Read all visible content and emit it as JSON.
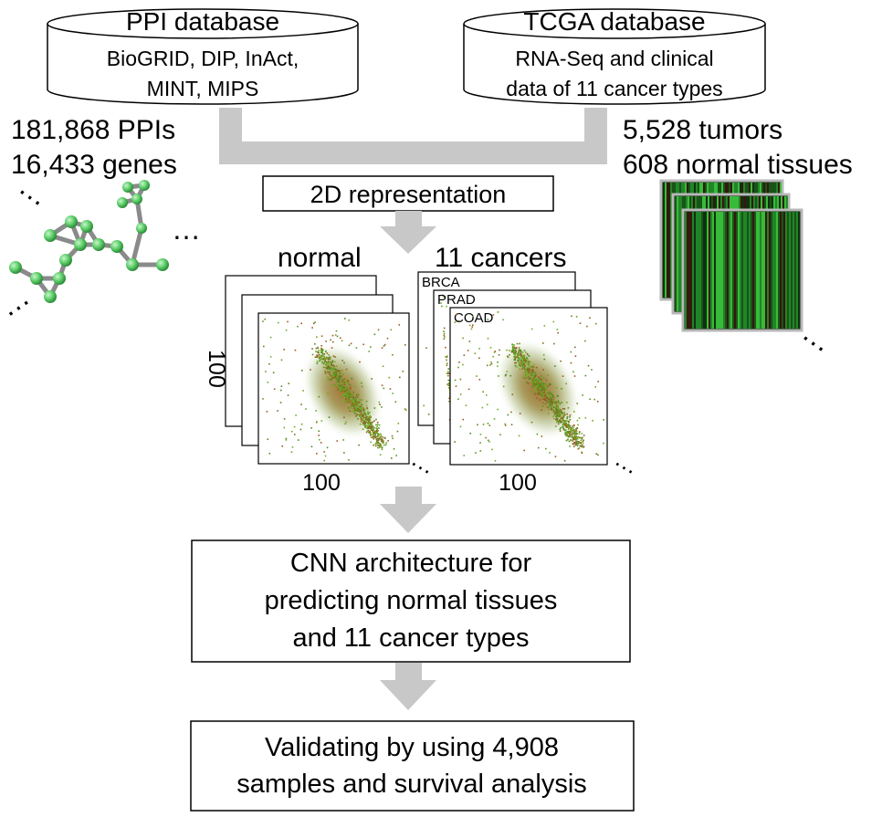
{
  "ppi_db": {
    "title": "PPI database",
    "line1": "BioGRID, DIP, InAct,",
    "line2": "MINT, MIPS"
  },
  "tcga_db": {
    "title": "TCGA database",
    "line1": "RNA-Seq and clinical",
    "line2": "data of 11 cancer types"
  },
  "ppi_stats": {
    "ppis": "181,868 PPIs",
    "genes": "16,433 genes"
  },
  "tcga_stats": {
    "tumors": "5,528 tumors",
    "normals": "608 normal tissues"
  },
  "step_2d": "2D representation",
  "normal_label": "normal",
  "cancers_label": "11 cancers",
  "cancer_types": [
    "BRCA",
    "PRAD",
    "COAD"
  ],
  "dim_vertical": "100",
  "dim_horizontal_left": "100",
  "dim_horizontal_right": "100",
  "ellipsis": "…",
  "cnn_box": {
    "line1": "CNN architecture for",
    "line2": "predicting normal tissues",
    "line3": "and 11 cancer types"
  },
  "validation_box": {
    "line1": "Validating by using 4,908",
    "line2": "samples and survival analysis"
  },
  "colors": {
    "arrow": "#c8c8c8",
    "node": "#5ecf6a",
    "edge": "#8a8a8a",
    "heat": "#22aa22"
  }
}
